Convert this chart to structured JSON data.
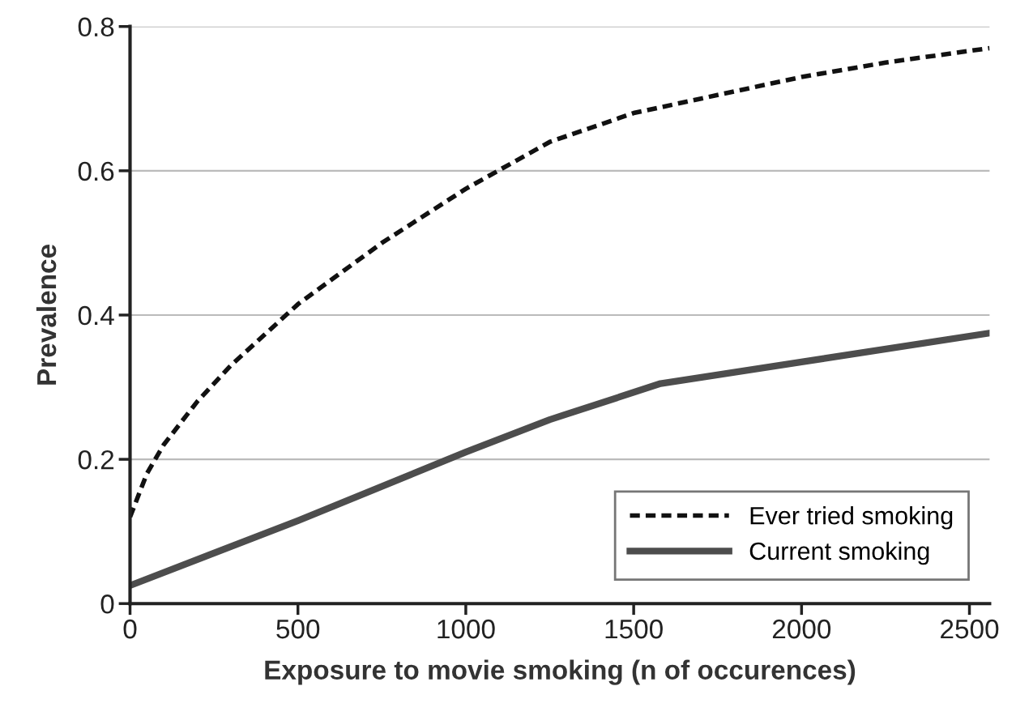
{
  "chart_data": {
    "type": "line",
    "xlabel": "Exposure to movie smoking (n of occurences)",
    "ylabel": "Prevalence",
    "xlim": [
      0,
      2560
    ],
    "xticks": [
      0,
      500,
      1000,
      1500,
      2000,
      2500
    ],
    "ylim": [
      0,
      0.8
    ],
    "yticks": [
      0,
      0.2,
      0.4,
      0.6,
      0.8
    ],
    "grid": "y",
    "legend": "bottom right",
    "series": [
      {
        "name": "Ever tried smoking",
        "color": "#111111",
        "line_style": "dashed",
        "x": [
          0,
          50,
          100,
          200,
          300,
          500,
          750,
          1000,
          1250,
          1500,
          1750,
          2000,
          2250,
          2560
        ],
        "values": [
          0.12,
          0.18,
          0.22,
          0.28,
          0.33,
          0.415,
          0.5,
          0.575,
          0.64,
          0.68,
          0.705,
          0.73,
          0.75,
          0.77
        ]
      },
      {
        "name": "Current smoking",
        "color": "#4d4d4d",
        "line_style": "solid",
        "x": [
          0,
          500,
          1000,
          1250,
          1580,
          2000,
          2560
        ],
        "values": [
          0.025,
          0.115,
          0.21,
          0.255,
          0.305,
          0.335,
          0.375
        ]
      }
    ]
  }
}
